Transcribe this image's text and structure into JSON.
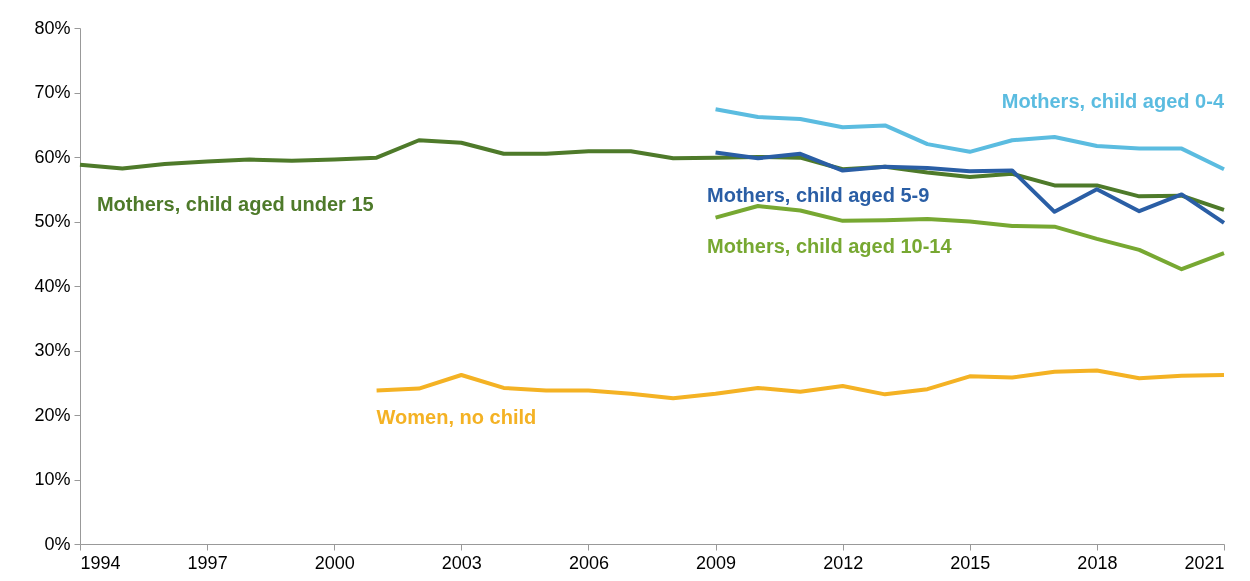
{
  "chart_data": {
    "type": "line",
    "xlim": [
      1994,
      2021
    ],
    "xticks": [
      1994,
      1997,
      2000,
      2003,
      2006,
      2009,
      2012,
      2015,
      2018,
      2021
    ],
    "ylim": [
      0,
      80
    ],
    "yticks": [
      {
        "value": 0,
        "label": "0%"
      },
      {
        "value": 10,
        "label": "10%"
      },
      {
        "value": 20,
        "label": "20%"
      },
      {
        "value": 30,
        "label": "30%"
      },
      {
        "value": 40,
        "label": "40%"
      },
      {
        "value": 50,
        "label": "50%"
      },
      {
        "value": 60,
        "label": "60%"
      },
      {
        "value": 70,
        "label": "70%"
      },
      {
        "value": 80,
        "label": "80%"
      }
    ],
    "grid": false,
    "line_style": "solid",
    "marker": "none",
    "series": [
      {
        "name": "Mothers, child aged under 15",
        "color": "#4e7a2a",
        "x": [
          1994,
          1995,
          1996,
          1997,
          1998,
          1999,
          2000,
          2001,
          2002,
          2003,
          2004,
          2005,
          2006,
          2007,
          2008,
          2009,
          2010,
          2011,
          2012,
          2013,
          2014,
          2015,
          2016,
          2017,
          2018,
          2019,
          2020,
          2021
        ],
        "values": [
          58.8,
          58.2,
          58.9,
          59.3,
          59.6,
          59.4,
          59.6,
          59.9,
          62.6,
          62.2,
          60.5,
          60.5,
          60.9,
          60.9,
          59.8,
          59.9,
          60.0,
          59.9,
          58.1,
          58.5,
          57.6,
          56.9,
          57.4,
          55.6,
          55.6,
          53.9,
          54.0,
          51.8
        ]
      },
      {
        "name": "Mothers, child aged 0-4",
        "color": "#5bbce0",
        "x": [
          2009,
          2010,
          2011,
          2012,
          2013,
          2014,
          2015,
          2016,
          2017,
          2018,
          2019,
          2020,
          2021
        ],
        "values": [
          67.4,
          66.2,
          65.9,
          64.6,
          64.9,
          62.0,
          60.8,
          62.6,
          63.1,
          61.7,
          61.3,
          61.3,
          58.1
        ]
      },
      {
        "name": "Mothers, child aged 5-9",
        "color": "#2a5ea5",
        "x": [
          2009,
          2010,
          2011,
          2012,
          2013,
          2014,
          2015,
          2016,
          2017,
          2018,
          2019,
          2020,
          2021
        ],
        "values": [
          60.7,
          59.8,
          60.5,
          57.9,
          58.5,
          58.3,
          57.8,
          57.9,
          51.5,
          55.0,
          51.6,
          54.2,
          49.8
        ]
      },
      {
        "name": "Mothers, child aged 10-14",
        "color": "#77a832",
        "x": [
          2009,
          2010,
          2011,
          2012,
          2013,
          2014,
          2015,
          2016,
          2017,
          2018,
          2019,
          2020,
          2021
        ],
        "values": [
          50.6,
          52.4,
          51.7,
          50.1,
          50.2,
          50.4,
          50.0,
          49.3,
          49.2,
          47.3,
          45.6,
          42.6,
          45.1
        ]
      },
      {
        "name": "Women, no child",
        "color": "#f4b224",
        "x": [
          2001,
          2002,
          2003,
          2004,
          2005,
          2006,
          2007,
          2008,
          2009,
          2010,
          2011,
          2012,
          2013,
          2014,
          2015,
          2016,
          2017,
          2018,
          2019,
          2020,
          2021
        ],
        "values": [
          23.8,
          24.1,
          26.2,
          24.2,
          23.8,
          23.8,
          23.3,
          22.6,
          23.3,
          24.2,
          23.6,
          24.5,
          23.2,
          24.0,
          26.0,
          25.8,
          26.7,
          26.9,
          25.7,
          26.1,
          26.2
        ]
      }
    ]
  }
}
